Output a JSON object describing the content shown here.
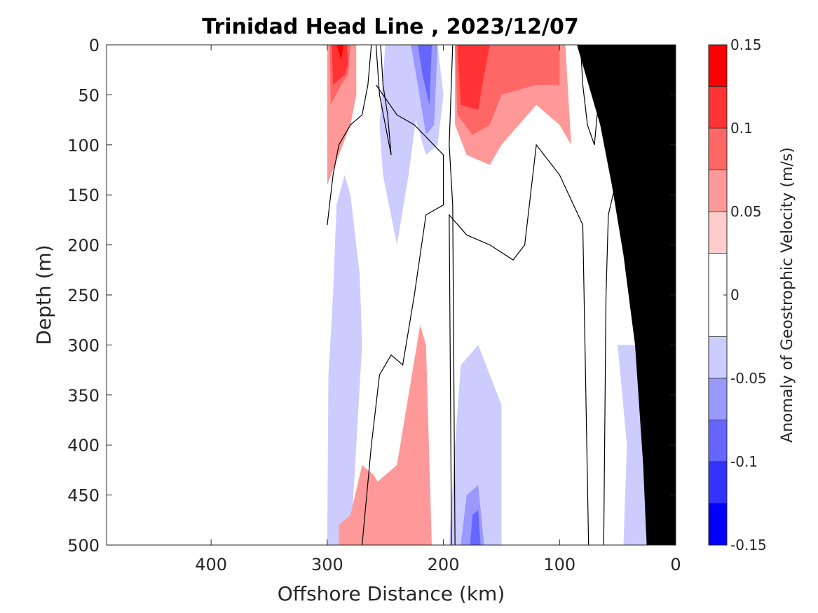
{
  "chart_data": {
    "type": "contourf",
    "title": "Trinidad Head Line , 2023/12/07",
    "xlabel": "Offshore Distance (km)",
    "ylabel": "Depth (m)",
    "xlim": [
      490,
      0
    ],
    "ylim": [
      0,
      500
    ],
    "x_reversed": true,
    "y_reversed": true,
    "xticks": [
      400,
      300,
      200,
      100,
      0
    ],
    "yticks": [
      0,
      50,
      100,
      150,
      200,
      250,
      300,
      350,
      400,
      450,
      500
    ],
    "colorbar": {
      "label": "Anomaly of Geostrophic Velocity (m/s)",
      "limits": [
        -0.15,
        0.15
      ],
      "ticks": [
        -0.15,
        -0.1,
        -0.05,
        0,
        0.05,
        0.1,
        0.15
      ],
      "tick_labels": [
        "-0.15",
        "-0.1",
        "-0.05",
        "0",
        "0.05",
        "0.1",
        "0.15"
      ],
      "levels": [
        -0.15,
        -0.125,
        -0.1,
        -0.075,
        -0.05,
        -0.025,
        0.025,
        0.05,
        0.075,
        0.1,
        0.125,
        0.15
      ],
      "colors": [
        "#0000ff",
        "#3333ff",
        "#6666ff",
        "#9999ff",
        "#ccccff",
        "#ffffff",
        "#ffcccc",
        "#ff9999",
        "#ff6666",
        "#ff3333",
        "#ff0000"
      ]
    },
    "bathymetry_color": "#000000",
    "contour_line_level": 0,
    "regions": [
      {
        "level": 0.05,
        "points": [
          [
            300,
            0
          ],
          [
            300,
            140
          ],
          [
            290,
            110
          ],
          [
            280,
            80
          ],
          [
            275,
            50
          ],
          [
            275,
            0
          ]
        ]
      },
      {
        "level": 0.075,
        "points": [
          [
            298,
            0
          ],
          [
            297,
            60
          ],
          [
            288,
            40
          ],
          [
            282,
            30
          ],
          [
            280,
            0
          ]
        ]
      },
      {
        "level": 0.1,
        "points": [
          [
            296,
            0
          ],
          [
            295,
            40
          ],
          [
            285,
            30
          ],
          [
            282,
            20
          ],
          [
            283,
            0
          ]
        ]
      },
      {
        "level": 0.125,
        "points": [
          [
            292,
            0
          ],
          [
            288,
            15
          ],
          [
            286,
            0
          ]
        ]
      },
      {
        "level": -0.05,
        "points": [
          [
            300,
            500
          ],
          [
            299,
            330
          ],
          [
            295,
            250
          ],
          [
            292,
            160
          ],
          [
            285,
            130
          ],
          [
            280,
            150
          ],
          [
            272,
            230
          ],
          [
            270,
            300
          ],
          [
            275,
            400
          ],
          [
            280,
            500
          ]
        ]
      },
      {
        "level": -0.05,
        "points": [
          [
            227,
            0
          ],
          [
            222,
            60
          ],
          [
            230,
            130
          ],
          [
            240,
            200
          ],
          [
            252,
            130
          ],
          [
            255,
            80
          ],
          [
            250,
            0
          ]
        ]
      },
      {
        "level": -0.05,
        "points": [
          [
            238,
            0
          ],
          [
            230,
            50
          ],
          [
            215,
            110
          ],
          [
            205,
            100
          ],
          [
            200,
            50
          ],
          [
            205,
            0
          ]
        ]
      },
      {
        "level": -0.05,
        "points": [
          [
            185,
            320
          ],
          [
            170,
            300
          ],
          [
            150,
            360
          ],
          [
            150,
            500
          ],
          [
            195,
            500
          ],
          [
            190,
            400
          ]
        ]
      },
      {
        "level": -0.05,
        "points": [
          [
            50,
            300
          ],
          [
            35,
            300
          ],
          [
            25,
            360
          ],
          [
            25,
            500
          ],
          [
            45,
            500
          ],
          [
            42,
            400
          ]
        ]
      },
      {
        "level": -0.05,
        "points": [
          [
            80,
            0
          ],
          [
            75,
            20
          ],
          [
            72,
            50
          ],
          [
            65,
            60
          ],
          [
            70,
            0
          ]
        ]
      },
      {
        "level": -0.05,
        "points": [
          [
            28,
            0
          ],
          [
            22,
            30
          ],
          [
            18,
            60
          ],
          [
            10,
            100
          ],
          [
            15,
            40
          ],
          [
            20,
            0
          ]
        ]
      },
      {
        "level": -0.075,
        "points": [
          [
            228,
            0
          ],
          [
            222,
            40
          ],
          [
            215,
            90
          ],
          [
            208,
            80
          ],
          [
            205,
            0
          ]
        ]
      },
      {
        "level": -0.075,
        "points": [
          [
            180,
            450
          ],
          [
            170,
            440
          ],
          [
            165,
            500
          ],
          [
            185,
            500
          ]
        ]
      },
      {
        "level": -0.1,
        "points": [
          [
            222,
            0
          ],
          [
            218,
            30
          ],
          [
            212,
            60
          ],
          [
            210,
            0
          ]
        ]
      },
      {
        "level": -0.1,
        "points": [
          [
            175,
            470
          ],
          [
            170,
            465
          ],
          [
            168,
            500
          ],
          [
            177,
            500
          ]
        ]
      },
      {
        "level": -0.125,
        "points": [
          [
            18,
            0
          ],
          [
            15,
            30
          ],
          [
            12,
            40
          ],
          [
            14,
            0
          ]
        ]
      },
      {
        "level": 0.05,
        "points": [
          [
            190,
            0
          ],
          [
            190,
            80
          ],
          [
            180,
            110
          ],
          [
            160,
            120
          ],
          [
            150,
            100
          ],
          [
            120,
            60
          ],
          [
            100,
            80
          ],
          [
            90,
            100
          ],
          [
            95,
            0
          ]
        ]
      },
      {
        "level": 0.075,
        "points": [
          [
            190,
            0
          ],
          [
            188,
            70
          ],
          [
            175,
            90
          ],
          [
            160,
            80
          ],
          [
            150,
            50
          ],
          [
            120,
            40
          ],
          [
            100,
            40
          ],
          [
            100,
            0
          ]
        ]
      },
      {
        "level": 0.1,
        "points": [
          [
            188,
            0
          ],
          [
            185,
            60
          ],
          [
            170,
            65
          ],
          [
            165,
            30
          ],
          [
            160,
            0
          ]
        ]
      },
      {
        "level": 0.05,
        "points": [
          [
            60,
            0
          ],
          [
            58,
            100
          ],
          [
            52,
            140
          ],
          [
            40,
            160
          ],
          [
            30,
            200
          ],
          [
            20,
            130
          ],
          [
            25,
            50
          ],
          [
            32,
            0
          ]
        ]
      },
      {
        "level": 0.075,
        "points": [
          [
            58,
            0
          ],
          [
            55,
            60
          ],
          [
            45,
            100
          ],
          [
            38,
            90
          ],
          [
            40,
            30
          ],
          [
            42,
            0
          ]
        ]
      },
      {
        "level": 0.075,
        "points": [
          [
            25,
            140
          ],
          [
            18,
            180
          ],
          [
            15,
            230
          ],
          [
            22,
            220
          ],
          [
            28,
            180
          ]
        ]
      },
      {
        "level": 0.1,
        "points": [
          [
            50,
            0
          ],
          [
            48,
            30
          ],
          [
            42,
            40
          ],
          [
            43,
            0
          ]
        ]
      },
      {
        "level": 0.05,
        "points": [
          [
            235,
            500
          ],
          [
            250,
            450
          ],
          [
            260,
            430
          ],
          [
            270,
            420
          ],
          [
            280,
            470
          ],
          [
            290,
            480
          ],
          [
            290,
            500
          ]
        ]
      },
      {
        "level": 0.05,
        "points": [
          [
            210,
            500
          ],
          [
            215,
            300
          ],
          [
            220,
            280
          ],
          [
            230,
            350
          ],
          [
            240,
            420
          ],
          [
            260,
            440
          ],
          [
            270,
            480
          ],
          [
            280,
            500
          ]
        ]
      }
    ],
    "contour_lines": [
      [
        [
          300,
          180
        ],
        [
          295,
          130
        ],
        [
          290,
          100
        ],
        [
          280,
          80
        ],
        [
          270,
          70
        ],
        [
          265,
          40
        ],
        [
          262,
          0
        ]
      ],
      [
        [
          258,
          0
        ],
        [
          255,
          50
        ],
        [
          250,
          80
        ],
        [
          245,
          110
        ],
        [
          248,
          70
        ],
        [
          252,
          40
        ],
        [
          254,
          0
        ]
      ],
      [
        [
          192,
          0
        ],
        [
          195,
          100
        ],
        [
          192,
          160
        ],
        [
          190,
          500
        ]
      ],
      [
        [
          193,
          500
        ],
        [
          195,
          170
        ],
        [
          180,
          190
        ],
        [
          160,
          200
        ],
        [
          140,
          215
        ],
        [
          130,
          200
        ],
        [
          120,
          100
        ],
        [
          100,
          130
        ],
        [
          80,
          180
        ],
        [
          75,
          500
        ]
      ],
      [
        [
          82,
          0
        ],
        [
          80,
          40
        ],
        [
          76,
          80
        ],
        [
          70,
          100
        ],
        [
          66,
          50
        ],
        [
          64,
          0
        ]
      ],
      [
        [
          62,
          500
        ],
        [
          60,
          250
        ],
        [
          58,
          170
        ],
        [
          52,
          140
        ],
        [
          40,
          180
        ],
        [
          30,
          220
        ],
        [
          22,
          240
        ],
        [
          18,
          250
        ]
      ],
      [
        [
          32,
          0
        ],
        [
          25,
          40
        ],
        [
          18,
          100
        ],
        [
          15,
          120
        ]
      ],
      [
        [
          270,
          500
        ],
        [
          262,
          400
        ],
        [
          255,
          330
        ],
        [
          245,
          310
        ],
        [
          235,
          320
        ],
        [
          225,
          250
        ],
        [
          215,
          170
        ],
        [
          200,
          160
        ],
        [
          200,
          110
        ],
        [
          225,
          80
        ],
        [
          240,
          70
        ],
        [
          258,
          40
        ]
      ]
    ],
    "bathymetry": [
      [
        0,
        0
      ],
      [
        -5,
        500
      ],
      [
        25,
        500
      ],
      [
        28,
        420
      ],
      [
        35,
        300
      ],
      [
        45,
        210
      ],
      [
        55,
        140
      ],
      [
        65,
        80
      ],
      [
        75,
        40
      ],
      [
        85,
        0
      ]
    ]
  }
}
